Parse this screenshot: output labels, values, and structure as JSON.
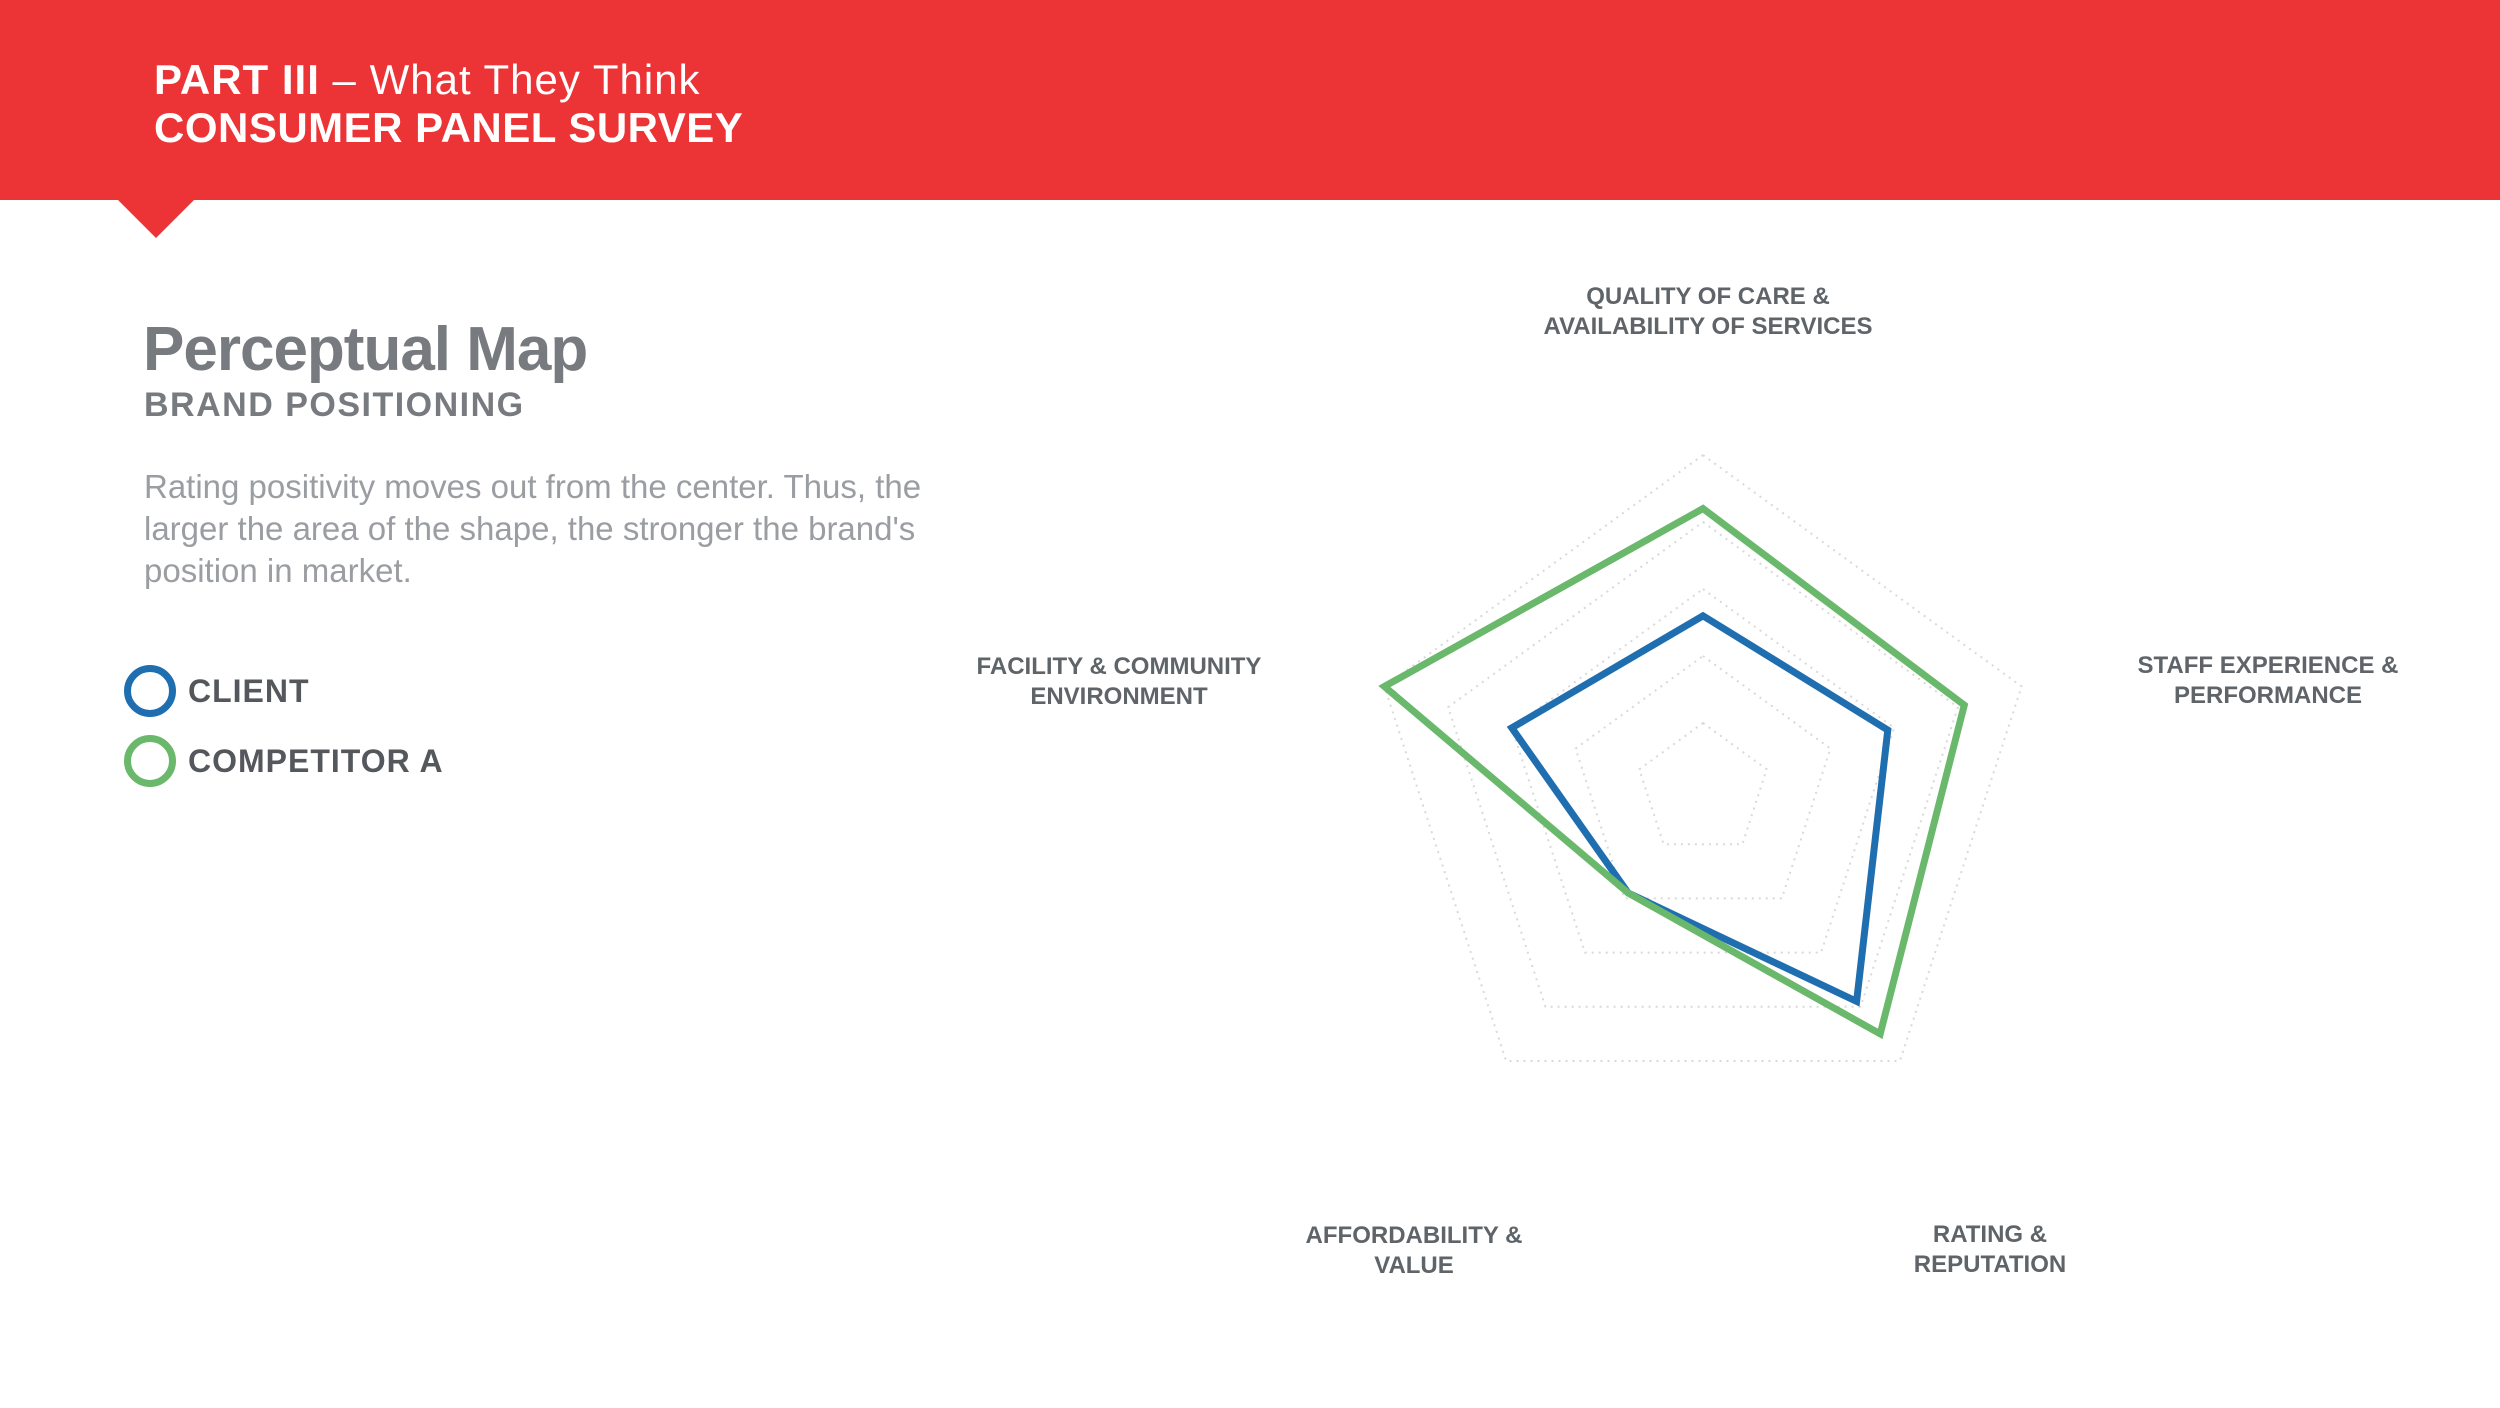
{
  "header": {
    "part": "PART III",
    "separator": " – ",
    "section": "What They Think",
    "title": "CONSUMER PANEL SURVEY"
  },
  "page": {
    "title": "Perceptual Map",
    "subtitle": "BRAND POSITIONING",
    "description": "Rating positivity moves out from the center. Thus, the larger the area of the shape, the stronger the brand's position in market."
  },
  "colors": {
    "banner": "#ec3336",
    "client": "#1f6eb0",
    "competitor": "#6ab86b",
    "grid": "#d9d9d9"
  },
  "chart_data": {
    "type": "radar",
    "axes": [
      "QUALITY OF CARE & AVAILABILITY OF SERVICES",
      "STAFF EXPERIENCE & PERFORMANCE",
      "RATING & REPUTATION",
      "AFFORDABILITY & VALUE",
      "FACILITY & COMMUNITY ENVIRONMENT"
    ],
    "axis_label_lines": [
      [
        "QUALITY OF CARE &",
        "AVAILABILITY OF SERVICES"
      ],
      [
        "STAFF EXPERIENCE &",
        "PERFORMANCE"
      ],
      [
        "RATING &",
        "REPUTATION"
      ],
      [
        "AFFORDABILITY &",
        "VALUE"
      ],
      [
        "FACILITY & COMMUNITY",
        "ENVIRONMENT"
      ]
    ],
    "grid_levels": 5,
    "range": [
      0,
      5
    ],
    "grid_lines": "dotted",
    "legend_placement": "left",
    "series": [
      {
        "name": "CLIENT",
        "color": "#1f6eb0",
        "values": [
          2.6,
          2.9,
          3.9,
          1.9,
          3.0
        ]
      },
      {
        "name": "COMPETITOR A",
        "color": "#6ab86b",
        "values": [
          4.2,
          4.1,
          4.5,
          1.9,
          5.0
        ]
      }
    ]
  }
}
